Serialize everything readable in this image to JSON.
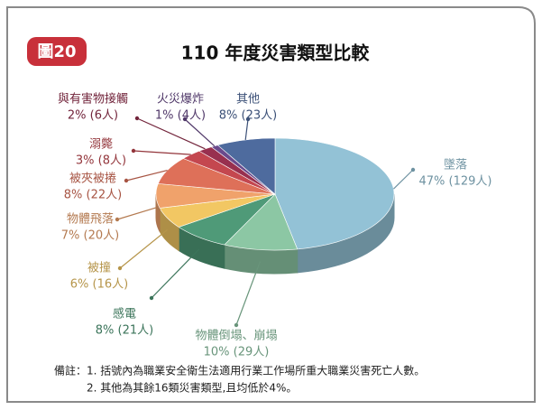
{
  "badge": "圖20",
  "chart_data": {
    "type": "pie",
    "title": "110 年度災害類型比較",
    "categories": [
      "墜落",
      "物體倒塌、崩塌",
      "感電",
      "被撞",
      "物體飛落",
      "被夾被捲",
      "溺斃",
      "與有害物接觸",
      "火災爆炸",
      "其他"
    ],
    "values": [
      47,
      10,
      8,
      6,
      7,
      8,
      3,
      2,
      1,
      8
    ],
    "value_labels": [
      "47% (129人)",
      "10% (29人)",
      "8% (21人)",
      "6% (16人)",
      "7% (20人)",
      "8% (22人)",
      "3% (8人)",
      "2% (6人)",
      "1% (4人)",
      "8% (23人)"
    ],
    "colors": [
      "#93c2d6",
      "#8cc7a4",
      "#4f9a78",
      "#f2c763",
      "#f0a26b",
      "#de7059",
      "#c4474f",
      "#98304f",
      "#6a4a8c",
      "#4e6b9e"
    ]
  },
  "note": {
    "label": "備註：",
    "lines": [
      "1. 括號內為職業安全衛生法適用行業工作場所重大職業災害死亡人數。",
      "2. 其他為其餘16類災害類型,且均低於4%。"
    ]
  }
}
